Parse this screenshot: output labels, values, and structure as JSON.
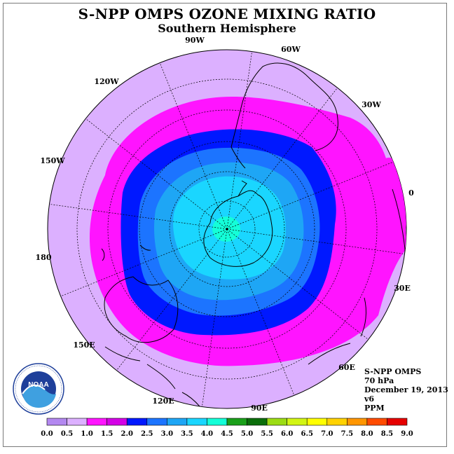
{
  "header": {
    "title": "S-NPP OMPS OZONE MIXING RATIO",
    "subtitle": "Southern Hemisphere"
  },
  "longitude_labels": {
    "lon_90w": "90W",
    "lon_60w": "60W",
    "lon_120w": "120W",
    "lon_30w": "30W",
    "lon_150w": "150W",
    "lon_0": "0",
    "lon_180": "180",
    "lon_30e": "30E",
    "lon_150e": "150E",
    "lon_60e": "60E",
    "lon_120e": "120E",
    "lon_90e": "90E"
  },
  "info": {
    "instrument": "S-NPP OMPS",
    "level": "70 hPa",
    "date": "December 19, 2013",
    "version": "v6",
    "units": "PPM"
  },
  "logo": {
    "text": "NOAA",
    "icon": "noaa-logo-icon"
  },
  "colorbar": {
    "ticks": [
      "0.0",
      "0.5",
      "1.0",
      "1.5",
      "2.0",
      "2.5",
      "3.0",
      "3.5",
      "4.0",
      "4.5",
      "5.0",
      "5.5",
      "6.0",
      "6.5",
      "7.0",
      "7.5",
      "8.0",
      "8.5",
      "9.0"
    ],
    "colors": [
      "#b388f0",
      "#dcb0ff",
      "#ff14ff",
      "#d400e6",
      "#0018ff",
      "#1c74ff",
      "#1ea6f5",
      "#1ad6ff",
      "#14ffd8",
      "#1aa01a",
      "#0a6e0a",
      "#9cdc14",
      "#d2f514",
      "#ffff00",
      "#ffd200",
      "#ff9600",
      "#ff4b00",
      "#e60000",
      "#7a4a2a"
    ]
  },
  "field_colors": {
    "background": "#dcb0ff",
    "band_1_0": "#ff14ff",
    "band_1_5": "#0018ff",
    "band_2_0": "#1c74ff",
    "band_2_5": "#1ea6f5",
    "band_3_0": "#1ad6ff",
    "band_3_5": "#14ffd8",
    "coast": "#000000",
    "grid": "#000000"
  }
}
